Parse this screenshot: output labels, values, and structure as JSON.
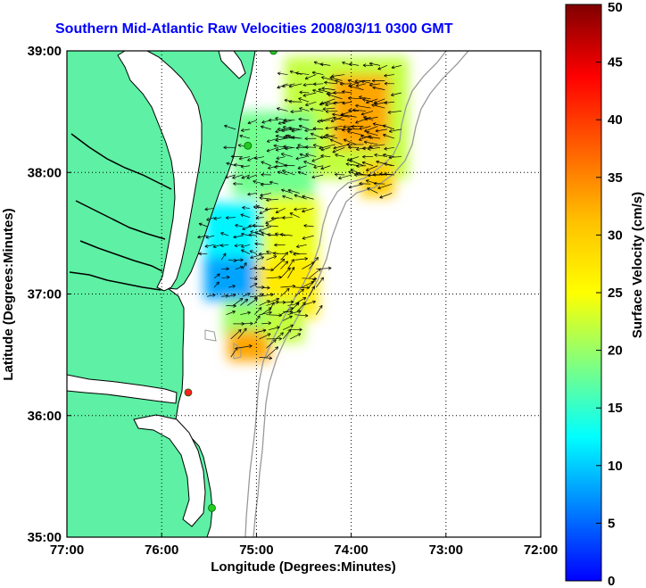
{
  "chart_data": [
    {
      "type": "map",
      "title": "Southern Mid-Atlantic Raw Velocities 2008/03/11 0300 GMT",
      "xlabel": "Longitude (Degrees:Minutes)",
      "ylabel": "Latitude (Degrees:Minutes)",
      "xlim": [
        -77,
        -72
      ],
      "ylim": [
        35,
        39
      ],
      "x_ticks": [
        {
          "value": -77,
          "label": "77:00"
        },
        {
          "value": -76,
          "label": "76:00"
        },
        {
          "value": -75,
          "label": "75:00"
        },
        {
          "value": -74,
          "label": "74:00"
        },
        {
          "value": -73,
          "label": "73:00"
        },
        {
          "value": -72,
          "label": "72:00"
        }
      ],
      "y_ticks": [
        {
          "value": 35,
          "label": "35:00"
        },
        {
          "value": 36,
          "label": "36:00"
        },
        {
          "value": 37,
          "label": "37:00"
        },
        {
          "value": 38,
          "label": "38:00"
        },
        {
          "value": 39,
          "label": "39:00"
        }
      ],
      "grid": true,
      "grid_style": "dotted",
      "colors": {
        "land": "#5ef0a4",
        "ocean": "#ffffff",
        "coastline": "#000000",
        "bathymetry": "#999999",
        "title": "#0000ff",
        "station_green": "#22cc22",
        "station_red": "#ff2020"
      },
      "stations": [
        {
          "lon": -74.82,
          "lat": 39.0,
          "status": "green"
        },
        {
          "lon": -75.09,
          "lat": 38.22,
          "status": "green"
        },
        {
          "lon": -75.72,
          "lat": 36.19,
          "status": "red"
        },
        {
          "lon": -75.47,
          "lat": 35.24,
          "status": "green"
        }
      ],
      "velocity_regions": [
        {
          "lon": [
            -74.7,
            -73.4
          ],
          "lat": [
            37.95,
            38.95
          ],
          "speed_cm_s": 22
        },
        {
          "lon": [
            -74.2,
            -73.6
          ],
          "lat": [
            38.2,
            38.8
          ],
          "speed_cm_s": 33
        },
        {
          "lon": [
            -75.25,
            -74.4
          ],
          "lat": [
            37.8,
            38.5
          ],
          "speed_cm_s": 18
        },
        {
          "lon": [
            -75.55,
            -74.85
          ],
          "lat": [
            37.3,
            37.75
          ],
          "speed_cm_s": 12
        },
        {
          "lon": [
            -75.55,
            -74.95
          ],
          "lat": [
            36.95,
            37.3
          ],
          "speed_cm_s": 8
        },
        {
          "lon": [
            -74.95,
            -74.35
          ],
          "lat": [
            37.3,
            37.8
          ],
          "speed_cm_s": 24
        },
        {
          "lon": [
            -75.0,
            -74.35
          ],
          "lat": [
            36.8,
            37.3
          ],
          "speed_cm_s": 27
        },
        {
          "lon": [
            -75.35,
            -74.9
          ],
          "lat": [
            36.65,
            36.95
          ],
          "speed_cm_s": 20
        },
        {
          "lon": [
            -75.3,
            -74.85
          ],
          "lat": [
            36.45,
            36.7
          ],
          "speed_cm_s": 33
        },
        {
          "lon": [
            -74.9,
            -74.5
          ],
          "lat": [
            36.6,
            36.95
          ],
          "speed_cm_s": 22
        },
        {
          "lon": [
            -73.9,
            -73.55
          ],
          "lat": [
            37.8,
            38.1
          ],
          "speed_cm_s": 30
        }
      ]
    },
    {
      "type": "colorbar",
      "label": "Surface Velocity (cm/s)",
      "ylim": [
        0,
        50
      ],
      "ticks": [
        {
          "value": 0,
          "label": "0"
        },
        {
          "value": 5,
          "label": "5"
        },
        {
          "value": 10,
          "label": "10"
        },
        {
          "value": 15,
          "label": "15"
        },
        {
          "value": 20,
          "label": "20"
        },
        {
          "value": 25,
          "label": "25"
        },
        {
          "value": 30,
          "label": "30"
        },
        {
          "value": 35,
          "label": "35"
        },
        {
          "value": 40,
          "label": "40"
        },
        {
          "value": 45,
          "label": "45"
        },
        {
          "value": 50,
          "label": "50"
        }
      ],
      "colormap": "jet"
    }
  ]
}
